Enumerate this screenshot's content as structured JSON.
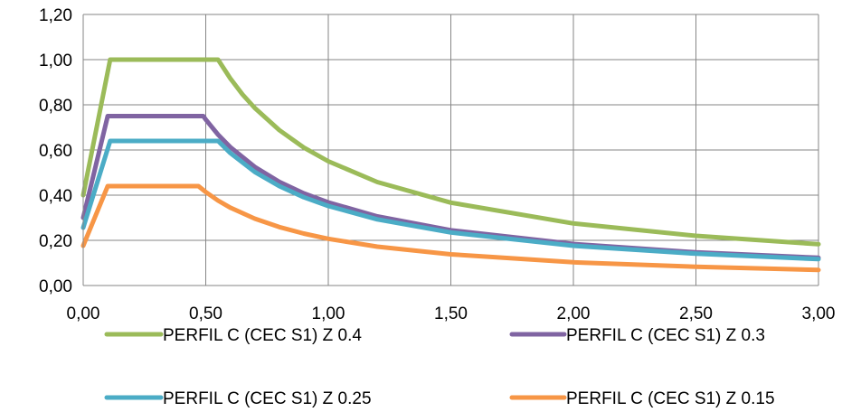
{
  "chart_data": {
    "type": "line",
    "title": "",
    "xlabel": "",
    "ylabel": "",
    "xlim": [
      0,
      3
    ],
    "ylim": [
      0,
      1.2
    ],
    "x_ticks": [
      "0,00",
      "0,50",
      "1,00",
      "1,50",
      "2,00",
      "2,50",
      "3,00"
    ],
    "y_ticks": [
      "0,00",
      "0,20",
      "0,40",
      "0,60",
      "0,80",
      "1,00",
      "1,20"
    ],
    "grid": true,
    "legend_position": "bottom",
    "series": [
      {
        "name": "PERFIL C (CEC S1) Z 0.4",
        "color": "#9BBB59",
        "x": [
          0.0,
          0.11,
          0.55,
          0.6,
          0.65,
          0.7,
          0.8,
          0.9,
          1.0,
          1.2,
          1.5,
          2.0,
          2.5,
          3.0
        ],
        "y": [
          0.4,
          1.0,
          1.0,
          0.917,
          0.846,
          0.786,
          0.688,
          0.611,
          0.55,
          0.458,
          0.367,
          0.275,
          0.22,
          0.183
        ]
      },
      {
        "name": "PERFIL C (CEC S1) Z 0.3",
        "color": "#8064A2",
        "x": [
          0.0,
          0.1,
          0.49,
          0.5,
          0.55,
          0.6,
          0.7,
          0.8,
          0.9,
          1.0,
          1.2,
          1.5,
          2.0,
          2.5,
          3.0
        ],
        "y": [
          0.3,
          0.75,
          0.75,
          0.735,
          0.668,
          0.613,
          0.525,
          0.459,
          0.408,
          0.368,
          0.306,
          0.245,
          0.184,
          0.147,
          0.123
        ]
      },
      {
        "name": "PERFIL C (CEC S1) Z 0.25",
        "color": "#4BACC6",
        "x": [
          0.0,
          0.11,
          0.55,
          0.6,
          0.7,
          0.8,
          0.9,
          1.0,
          1.2,
          1.5,
          2.0,
          2.5,
          3.0
        ],
        "y": [
          0.256,
          0.64,
          0.64,
          0.587,
          0.503,
          0.44,
          0.391,
          0.352,
          0.293,
          0.235,
          0.176,
          0.141,
          0.117
        ]
      },
      {
        "name": "PERFIL C (CEC S1) Z 0.15",
        "color": "#F79646",
        "x": [
          0.0,
          0.1,
          0.47,
          0.5,
          0.55,
          0.6,
          0.7,
          0.8,
          0.9,
          1.0,
          1.2,
          1.5,
          2.0,
          2.5,
          3.0
        ],
        "y": [
          0.176,
          0.44,
          0.44,
          0.414,
          0.376,
          0.345,
          0.296,
          0.259,
          0.23,
          0.207,
          0.172,
          0.138,
          0.103,
          0.083,
          0.069
        ]
      }
    ]
  }
}
